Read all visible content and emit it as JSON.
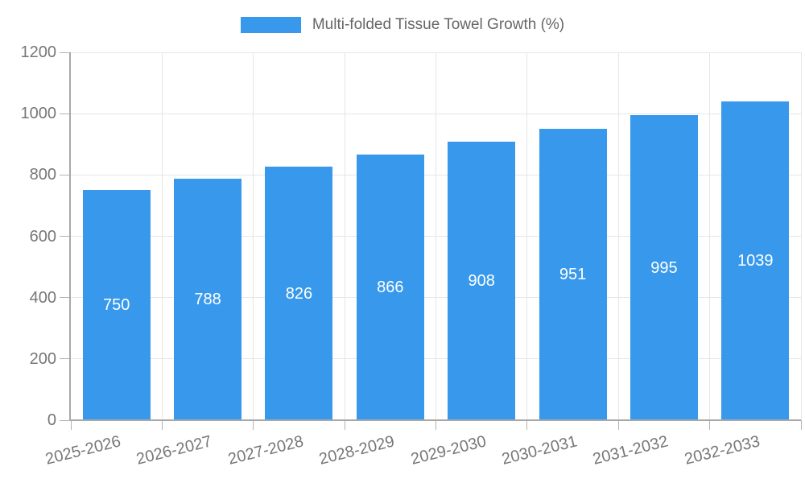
{
  "chart_data": {
    "type": "bar",
    "title": "Multi-folded Tissue Towel Growth (%)",
    "categories": [
      "2025-2026",
      "2026-2027",
      "2027-2028",
      "2028-2029",
      "2029-2030",
      "2030-2031",
      "2031-2032",
      "2032-2033"
    ],
    "series": [
      {
        "name": "Multi-folded Tissue Towel Growth (%)",
        "values": [
          750,
          788,
          826,
          866,
          908,
          951,
          995,
          1039
        ]
      }
    ],
    "xlabel": "",
    "ylabel": "",
    "ylim": [
      0,
      1200
    ],
    "ytick_step": 200,
    "ytick_labels": [
      "0",
      "200",
      "400",
      "600",
      "800",
      "1000",
      "1200"
    ],
    "grid": true,
    "legend_position": "top",
    "value_label_position": "inside-center",
    "x_label_rotation_deg": -14,
    "colors": {
      "bar": "#3899EC",
      "value_label": "#FFFFFF",
      "axis_text": "#777777",
      "legend_text": "#666666",
      "grid": "#E6E6E6",
      "axis_line": "#A8A8A8",
      "tick": "#B3B3B3",
      "background": "#FFFFFF"
    }
  }
}
